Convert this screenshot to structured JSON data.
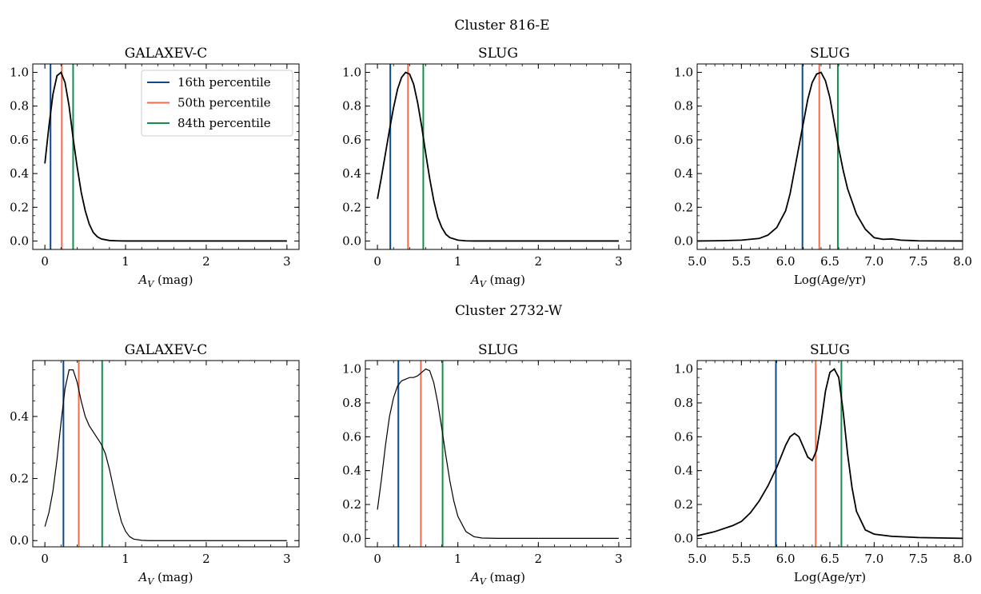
{
  "figure": {
    "row_titles": [
      "Cluster 816-E",
      "Cluster 2732-W"
    ]
  },
  "legend": {
    "entries": [
      {
        "label": "16th percentile",
        "color": "#0b4a8b"
      },
      {
        "label": "50th percentile",
        "color": "#f26b4e"
      },
      {
        "label": "84th percentile",
        "color": "#12904a"
      }
    ],
    "placement": "upper-right"
  },
  "colors": {
    "p16": "#0b4a8b",
    "p50": "#f26b4e",
    "p84": "#12904a",
    "curve": "#000000"
  },
  "chart_data": [
    {
      "type": "line",
      "title": "GALAXEV-C",
      "xlabel": "A_V (mag)",
      "ylabel": "",
      "xlim": [
        -0.15,
        3.15
      ],
      "ylim": [
        -0.05,
        1.05
      ],
      "xticks": [
        0,
        1,
        2,
        3
      ],
      "xticklabels": [
        "0",
        "1",
        "2",
        "3"
      ],
      "yticks": [
        0.0,
        0.2,
        0.4,
        0.6,
        0.8,
        1.0
      ],
      "yticklabels": [
        "0.0",
        "0.2",
        "0.4",
        "0.6",
        "0.8",
        "1.0"
      ],
      "grid": false,
      "legend": true,
      "percentiles": [
        0.07,
        0.21,
        0.35
      ],
      "series": [
        {
          "x": [
            0.0,
            0.05,
            0.1,
            0.15,
            0.2,
            0.25,
            0.3,
            0.35,
            0.4,
            0.45,
            0.5,
            0.55,
            0.6,
            0.65,
            0.7,
            0.8,
            0.9,
            1.0,
            1.5,
            2.0,
            2.5,
            3.0
          ],
          "y": [
            0.46,
            0.68,
            0.87,
            0.98,
            1.0,
            0.94,
            0.8,
            0.61,
            0.44,
            0.29,
            0.18,
            0.1,
            0.05,
            0.025,
            0.012,
            0.003,
            0.001,
            0.0,
            0.0,
            0.0,
            0.0,
            0.0
          ]
        }
      ]
    },
    {
      "type": "line",
      "title": "SLUG",
      "xlabel": "A_V (mag)",
      "ylabel": "",
      "xlim": [
        -0.15,
        3.15
      ],
      "ylim": [
        -0.05,
        1.05
      ],
      "xticks": [
        0,
        1,
        2,
        3
      ],
      "xticklabels": [
        "0",
        "1",
        "2",
        "3"
      ],
      "yticks": [
        0.0,
        0.2,
        0.4,
        0.6,
        0.8,
        1.0
      ],
      "yticklabels": [
        "0.0",
        "0.2",
        "0.4",
        "0.6",
        "0.8",
        "1.0"
      ],
      "grid": false,
      "legend": false,
      "percentiles": [
        0.16,
        0.38,
        0.57
      ],
      "series": [
        {
          "x": [
            0.0,
            0.05,
            0.1,
            0.15,
            0.2,
            0.25,
            0.3,
            0.35,
            0.4,
            0.45,
            0.5,
            0.55,
            0.6,
            0.65,
            0.7,
            0.75,
            0.8,
            0.85,
            0.9,
            1.0,
            1.1,
            1.2,
            1.5,
            2.0,
            2.5,
            3.0
          ],
          "y": [
            0.25,
            0.38,
            0.52,
            0.66,
            0.79,
            0.9,
            0.97,
            1.0,
            0.99,
            0.93,
            0.82,
            0.68,
            0.52,
            0.37,
            0.24,
            0.14,
            0.08,
            0.04,
            0.02,
            0.005,
            0.001,
            0.0,
            0.0,
            0.0,
            0.0,
            0.0
          ]
        }
      ]
    },
    {
      "type": "line",
      "title": "SLUG",
      "xlabel": "Log(Age/yr)",
      "ylabel": "",
      "xlim": [
        5.0,
        8.0
      ],
      "ylim": [
        -0.05,
        1.05
      ],
      "xticks": [
        5.0,
        5.5,
        6.0,
        6.5,
        7.0,
        7.5,
        8.0
      ],
      "xticklabels": [
        "5.0",
        "5.5",
        "6.0",
        "6.5",
        "7.0",
        "7.5",
        "8.0"
      ],
      "yticks": [
        0.0,
        0.2,
        0.4,
        0.6,
        0.8,
        1.0
      ],
      "yticklabels": [
        "0.0",
        "0.2",
        "0.4",
        "0.6",
        "0.8",
        "1.0"
      ],
      "grid": false,
      "legend": false,
      "percentiles": [
        6.19,
        6.38,
        6.59
      ],
      "series": [
        {
          "x": [
            5.0,
            5.3,
            5.5,
            5.7,
            5.8,
            5.9,
            6.0,
            6.05,
            6.1,
            6.15,
            6.2,
            6.25,
            6.3,
            6.35,
            6.4,
            6.45,
            6.5,
            6.55,
            6.6,
            6.65,
            6.7,
            6.8,
            6.9,
            7.0,
            7.1,
            7.2,
            7.3,
            7.5,
            8.0
          ],
          "y": [
            0.0,
            0.002,
            0.005,
            0.015,
            0.035,
            0.08,
            0.18,
            0.28,
            0.42,
            0.56,
            0.7,
            0.84,
            0.94,
            0.99,
            1.0,
            0.95,
            0.85,
            0.7,
            0.55,
            0.42,
            0.31,
            0.16,
            0.07,
            0.02,
            0.01,
            0.012,
            0.005,
            0.001,
            0.0
          ]
        }
      ]
    },
    {
      "type": "line",
      "title": "GALAXEV-C",
      "xlabel": "A_V (mag)",
      "ylabel": "",
      "xlim": [
        -0.15,
        3.15
      ],
      "ylim": [
        -0.02,
        0.58
      ],
      "xticks": [
        0,
        1,
        2,
        3
      ],
      "xticklabels": [
        "0",
        "1",
        "2",
        "3"
      ],
      "yticks": [
        0.0,
        0.2,
        0.4
      ],
      "yticklabels": [
        "0.0",
        "0.2",
        "0.4"
      ],
      "grid": false,
      "legend": false,
      "percentiles": [
        0.23,
        0.42,
        0.71
      ],
      "series": [
        {
          "x": [
            0.0,
            0.05,
            0.1,
            0.15,
            0.2,
            0.25,
            0.3,
            0.35,
            0.4,
            0.45,
            0.5,
            0.55,
            0.6,
            0.65,
            0.7,
            0.75,
            0.8,
            0.85,
            0.9,
            0.95,
            1.0,
            1.05,
            1.1,
            1.2,
            1.3,
            1.5,
            2.0,
            2.5,
            3.0
          ],
          "y": [
            0.045,
            0.09,
            0.16,
            0.26,
            0.38,
            0.49,
            0.55,
            0.55,
            0.51,
            0.45,
            0.4,
            0.37,
            0.35,
            0.33,
            0.31,
            0.28,
            0.23,
            0.17,
            0.11,
            0.06,
            0.03,
            0.013,
            0.005,
            0.001,
            0.0,
            0.0,
            0.0,
            0.0,
            0.0
          ]
        }
      ]
    },
    {
      "type": "line",
      "title": "SLUG",
      "xlabel": "A_V (mag)",
      "ylabel": "",
      "xlim": [
        -0.15,
        3.15
      ],
      "ylim": [
        -0.05,
        1.05
      ],
      "xticks": [
        0,
        1,
        2,
        3
      ],
      "xticklabels": [
        "0",
        "1",
        "2",
        "3"
      ],
      "yticks": [
        0.0,
        0.2,
        0.4,
        0.6,
        0.8,
        1.0
      ],
      "yticklabels": [
        "0.0",
        "0.2",
        "0.4",
        "0.6",
        "0.8",
        "1.0"
      ],
      "grid": false,
      "legend": false,
      "percentiles": [
        0.26,
        0.54,
        0.81
      ],
      "series": [
        {
          "x": [
            0.0,
            0.05,
            0.1,
            0.15,
            0.2,
            0.25,
            0.3,
            0.35,
            0.4,
            0.45,
            0.5,
            0.55,
            0.6,
            0.65,
            0.7,
            0.75,
            0.8,
            0.85,
            0.9,
            0.95,
            1.0,
            1.1,
            1.2,
            1.3,
            1.5,
            2.0,
            2.5,
            3.0
          ],
          "y": [
            0.17,
            0.35,
            0.55,
            0.72,
            0.83,
            0.9,
            0.93,
            0.94,
            0.95,
            0.95,
            0.96,
            0.98,
            1.0,
            0.99,
            0.92,
            0.8,
            0.65,
            0.49,
            0.34,
            0.22,
            0.13,
            0.04,
            0.01,
            0.002,
            0.0,
            0.0,
            0.0,
            0.0
          ]
        }
      ]
    },
    {
      "type": "line",
      "title": "SLUG",
      "xlabel": "Log(Age/yr)",
      "ylabel": "",
      "xlim": [
        5.0,
        8.0
      ],
      "ylim": [
        -0.05,
        1.05
      ],
      "xticks": [
        5.0,
        5.5,
        6.0,
        6.5,
        7.0,
        7.5,
        8.0
      ],
      "xticklabels": [
        "5.0",
        "5.5",
        "6.0",
        "6.5",
        "7.0",
        "7.5",
        "8.0"
      ],
      "yticks": [
        0.0,
        0.2,
        0.4,
        0.6,
        0.8,
        1.0
      ],
      "yticklabels": [
        "0.0",
        "0.2",
        "0.4",
        "0.6",
        "0.8",
        "1.0"
      ],
      "grid": false,
      "legend": false,
      "percentiles": [
        5.89,
        6.34,
        6.63
      ],
      "series": [
        {
          "x": [
            5.0,
            5.2,
            5.4,
            5.5,
            5.6,
            5.7,
            5.8,
            5.9,
            6.0,
            6.05,
            6.1,
            6.15,
            6.2,
            6.25,
            6.3,
            6.35,
            6.4,
            6.45,
            6.5,
            6.55,
            6.6,
            6.65,
            6.7,
            6.75,
            6.8,
            6.9,
            7.0,
            7.2,
            7.5,
            8.0
          ],
          "y": [
            0.015,
            0.04,
            0.075,
            0.1,
            0.15,
            0.22,
            0.31,
            0.42,
            0.55,
            0.6,
            0.62,
            0.6,
            0.54,
            0.48,
            0.46,
            0.52,
            0.68,
            0.87,
            0.98,
            1.0,
            0.95,
            0.75,
            0.5,
            0.3,
            0.16,
            0.05,
            0.025,
            0.012,
            0.005,
            0.0
          ]
        }
      ]
    }
  ]
}
